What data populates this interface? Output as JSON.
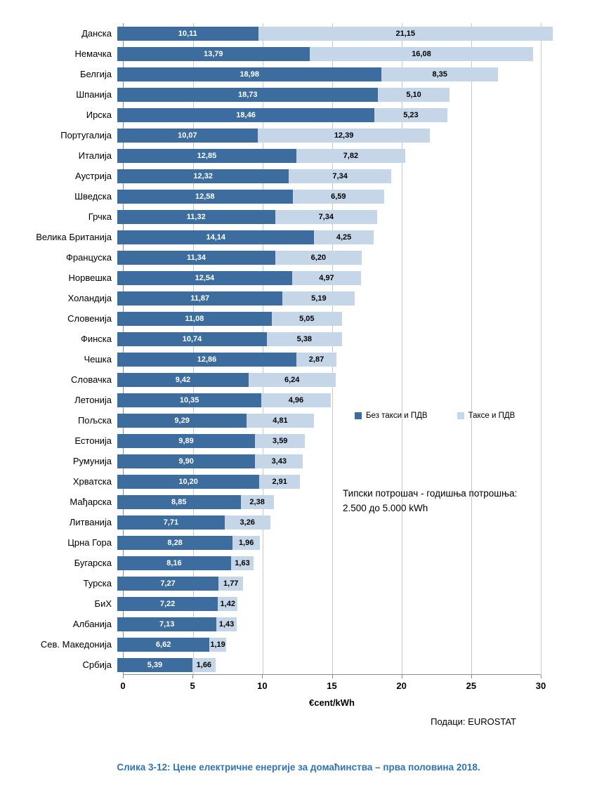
{
  "chart_data": {
    "type": "bar",
    "orientation": "horizontal",
    "stacked": true,
    "categories": [
      "Данска",
      "Немачка",
      "Белгија",
      "Шпанија",
      "Ирска",
      "Португалија",
      "Италија",
      "Аустрија",
      "Шведска",
      "Грчка",
      "Велика Британија",
      "Француска",
      "Норвешка",
      "Холандија",
      "Словенија",
      "Финска",
      "Чешка",
      "Словачка",
      "Летонија",
      "Пољска",
      "Естонија",
      "Румунија",
      "Хрватска",
      "Мађарска",
      "Литванија",
      "Црна Гора",
      "Бугарска",
      "Турска",
      "БиХ",
      "Албанија",
      "Сев. Македонија",
      "Србија"
    ],
    "series": [
      {
        "name": "Без такси и ПДВ",
        "color": "#3C6D9E",
        "values": [
          "10,11",
          "13,79",
          "18,98",
          "18,73",
          "18,46",
          "10,07",
          "12,85",
          "12,32",
          "12,58",
          "11,32",
          "14,14",
          "11,34",
          "12,54",
          "11,87",
          "11,08",
          "10,74",
          "12,86",
          "9,42",
          "10,35",
          "9,29",
          "9,89",
          "9,90",
          "10,20",
          "8,85",
          "7,71",
          "8,28",
          "8,16",
          "7,27",
          "7,22",
          "7,13",
          "6,62",
          "5,39"
        ]
      },
      {
        "name": "Таксе и ПДВ",
        "color": "#C5D6E9",
        "values": [
          "21,15",
          "16,08",
          "8,35",
          "5,10",
          "5,23",
          "12,39",
          "7,82",
          "7,34",
          "6,59",
          "7,34",
          "4,25",
          "6,20",
          "4,97",
          "5,19",
          "5,05",
          "5,38",
          "2,87",
          "6,24",
          "4,96",
          "4,81",
          "3,59",
          "3,43",
          "2,91",
          "2,38",
          "3,26",
          "1,96",
          "1,63",
          "1,77",
          "1,42",
          "1,43",
          "1,19",
          "1,66"
        ]
      }
    ],
    "xlabel": "€cent/kWh",
    "xlim": [
      0,
      30
    ],
    "xticks": [
      0,
      5,
      10,
      15,
      20,
      25,
      30
    ],
    "grid": "vertical",
    "legend_position": "inside-right",
    "annotation_lines": [
      "Типски потрошач - годишња потрошња:",
      "2.500 до 5.000  kWh"
    ],
    "source": "Подаци: EUROSTAT",
    "caption": "Слика 3-12: Цене електричне енергије за домаћинства – прва половина 2018."
  }
}
